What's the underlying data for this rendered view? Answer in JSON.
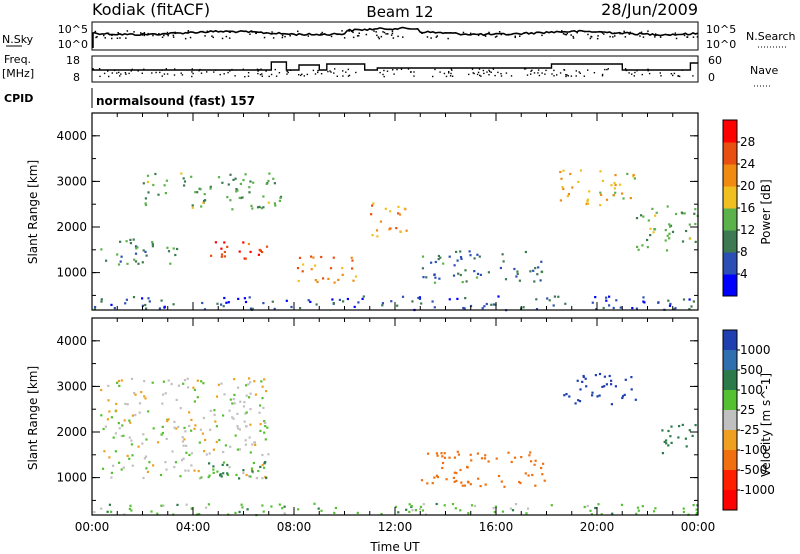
{
  "header": {
    "station": "Kodiak (fitACF)",
    "beam": "Beam 12",
    "date": "28/Jun/2009"
  },
  "params": {
    "nsky_label": "N.Sky",
    "nsearch_label": "N.Search",
    "freq_label_1": "Freq.",
    "freq_label_2": "[MHz]",
    "nave_label": "Nave",
    "cpid_label": "CPID",
    "cpid_value": "normalsound (fast) 157",
    "noise_ticks_left": [
      "10^5",
      "10^0"
    ],
    "noise_ticks_right": [
      "10^5",
      "10^0"
    ],
    "freq_ticks": [
      "18",
      "8"
    ],
    "nave_ticks": [
      "60",
      "0"
    ]
  },
  "colors": {
    "power_scale": [
      "#0000ff",
      "#2b4fb5",
      "#3d7a52",
      "#5bb14a",
      "#f0c020",
      "#f08a10",
      "#e84f10",
      "#ff0000"
    ],
    "velocity_scale": [
      "#1f3fb0",
      "#2f6fb0",
      "#2b7a4a",
      "#55c030",
      "#c0c0c0",
      "#f0a020",
      "#f07010",
      "#ff2000",
      "#ff0000"
    ]
  },
  "chart_data": [
    {
      "type": "heatmap",
      "panel": "power",
      "ylabel": "Slant Range [km]",
      "yticks": [
        "1000",
        "2000",
        "3000",
        "4000"
      ],
      "ylim": [
        180,
        4500
      ],
      "x_ticks": [
        "00:00",
        "04:00",
        "08:00",
        "12:00",
        "16:00",
        "20:00",
        "00:00"
      ],
      "colorbar_label": "Power [dB]",
      "colorbar_ticks": [
        "4",
        "8",
        "12",
        "16",
        "20",
        "24",
        "28"
      ],
      "color_range": [
        0,
        30
      ],
      "echo_regions": [
        {
          "t0": 0.3,
          "t1": 3.5,
          "r0": 1200,
          "r1": 1800,
          "value": 10
        },
        {
          "t0": 4.0,
          "t1": 7.0,
          "r0": 1300,
          "r1": 1700,
          "value": 26
        },
        {
          "t0": 8.0,
          "t1": 10.5,
          "r0": 800,
          "r1": 1400,
          "value": 22
        },
        {
          "t0": 11.0,
          "t1": 12.5,
          "r0": 1800,
          "r1": 2600,
          "value": 20
        },
        {
          "t0": 2.0,
          "t1": 7.5,
          "r0": 2400,
          "r1": 3200,
          "value": 12
        },
        {
          "t0": 13.0,
          "t1": 18.0,
          "r0": 800,
          "r1": 1500,
          "value": 8
        },
        {
          "t0": 18.5,
          "t1": 21.5,
          "r0": 2500,
          "r1": 3300,
          "value": 18
        },
        {
          "t0": 21.5,
          "t1": 24.0,
          "r0": 1500,
          "r1": 2500,
          "value": 12
        },
        {
          "t0": 0.0,
          "t1": 24.0,
          "r0": 200,
          "r1": 500,
          "value": 6
        }
      ]
    },
    {
      "type": "heatmap",
      "panel": "velocity",
      "ylabel": "Slant Range [km]",
      "xlabel": "Time UT",
      "yticks": [
        "1000",
        "2000",
        "3000",
        "4000"
      ],
      "ylim": [
        180,
        4500
      ],
      "x_ticks": [
        "00:00",
        "04:00",
        "08:00",
        "12:00",
        "16:00",
        "20:00",
        "00:00"
      ],
      "colorbar_label": "Velocity [m s^-1]",
      "colorbar_ticks": [
        "1000",
        "500",
        "100",
        "25",
        "-25",
        "-100",
        "-500",
        "-1000"
      ],
      "color_range": [
        -1000,
        1000
      ],
      "echo_regions": [
        {
          "t0": 0.3,
          "t1": 7.0,
          "r0": 1000,
          "r1": 3200,
          "value": 0
        },
        {
          "t0": 4.5,
          "t1": 7.0,
          "r0": 1000,
          "r1": 1400,
          "value": 150
        },
        {
          "t0": 13.0,
          "t1": 18.0,
          "r0": 800,
          "r1": 1600,
          "value": -200
        },
        {
          "t0": 18.5,
          "t1": 21.5,
          "r0": 2600,
          "r1": 3300,
          "value": 700
        },
        {
          "t0": 22.5,
          "t1": 24.0,
          "r0": 1500,
          "r1": 2200,
          "value": 300
        },
        {
          "t0": 0.0,
          "t1": 24.0,
          "r0": 200,
          "r1": 450,
          "value": 60
        }
      ]
    }
  ]
}
